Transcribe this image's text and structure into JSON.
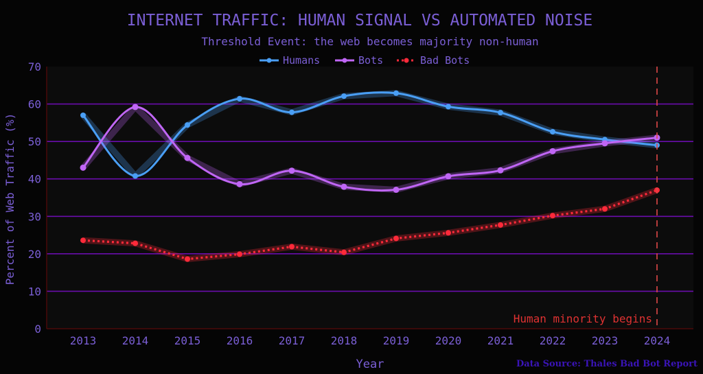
{
  "chart_data": {
    "type": "line",
    "title": "INTERNET TRAFFIC: HUMAN SIGNAL VS AUTOMATED NOISE",
    "subtitle": "Threshold Event: the web becomes majority non-human",
    "xlabel": "Year",
    "ylabel": "Percent of Web Traffic (%)",
    "x": [
      2013,
      2014,
      2015,
      2016,
      2017,
      2018,
      2019,
      2020,
      2021,
      2022,
      2023,
      2024
    ],
    "xtick_labels": [
      "2013",
      "2014",
      "2015",
      "2016",
      "2017",
      "2018",
      "2019",
      "2020",
      "2021",
      "2022",
      "2023",
      "2024"
    ],
    "ylim": [
      0,
      70
    ],
    "yticks": [
      0,
      10,
      20,
      30,
      40,
      50,
      60,
      70
    ],
    "ytick_labels": [
      "0",
      "10",
      "20",
      "30",
      "40",
      "50",
      "60",
      "70"
    ],
    "grid": "horizontal",
    "legend_position": "top-center",
    "series": [
      {
        "name": "Humans",
        "color": "#4a9ff5",
        "style": "solid",
        "values": [
          57.0,
          40.8,
          54.4,
          61.4,
          57.8,
          62.1,
          62.9,
          59.3,
          57.7,
          52.6,
          50.5,
          49.0
        ]
      },
      {
        "name": "Bots",
        "color": "#c066f5",
        "style": "solid",
        "values": [
          43.0,
          59.2,
          45.6,
          38.6,
          42.2,
          37.9,
          37.1,
          40.7,
          42.3,
          47.4,
          49.5,
          51.0
        ]
      },
      {
        "name": "Bad Bots",
        "color": "#ff2a3a",
        "style": "dotted",
        "values": [
          23.6,
          22.8,
          18.6,
          19.9,
          21.9,
          20.4,
          24.1,
          25.6,
          27.7,
          30.2,
          32.0,
          37.0
        ]
      }
    ],
    "annotations": [
      {
        "text": "Human minority begins",
        "x": 2024,
        "type": "vertical-dashed-line",
        "color": "#e04040"
      }
    ],
    "source": "Data Source: Thales Bad Bot Report"
  },
  "colors": {
    "background": "#050505",
    "plot_background": "#0c0c0c",
    "grid": "#6a0dad",
    "spine": "#5a0a0a",
    "text": "#7b5fd6",
    "source_text": "#3a14b8"
  }
}
